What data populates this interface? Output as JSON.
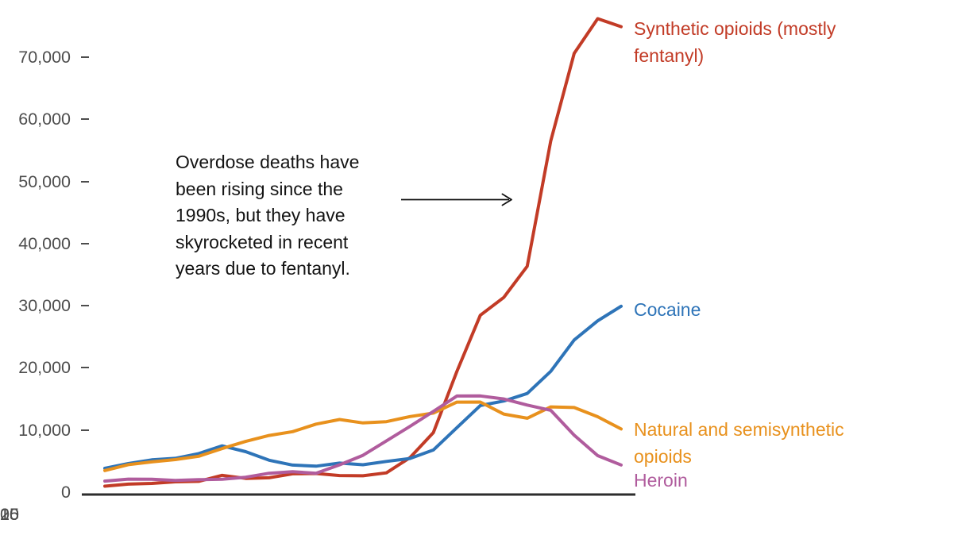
{
  "annotation": {
    "text": "Overdose deaths have been rising since the 1990s, but they have skyrocketed in recent years due to fentanyl.",
    "lines": [
      "Overdose deaths have",
      "been rising since the",
      "1990s, but they have",
      "skyrocketed in recent",
      "years due to fentanyl."
    ]
  },
  "legend": [
    {
      "label": "Synthetic opioids (mostly fentanyl)",
      "color": "#c23b26",
      "lines": [
        "Synthetic opioids (mostly",
        "fentanyl)"
      ]
    },
    {
      "label": "Cocaine",
      "color": "#2e74b8",
      "lines": [
        "Cocaine"
      ]
    },
    {
      "label": "Natural and semisynthetic opioids",
      "color": "#e8911d",
      "lines": [
        "Natural and semisynthetic",
        "opioids"
      ]
    },
    {
      "label": "Heroin",
      "color": "#b05c9d",
      "lines": [
        "Heroin"
      ]
    }
  ],
  "colors": {
    "axis_line": "#2d2d2d",
    "tick_text": "#4d4d4d",
    "annotation_text": "#141414",
    "arrow": "#111111"
  },
  "chart_data": {
    "type": "line",
    "title": "",
    "xlabel": "",
    "ylabel": "",
    "grid": false,
    "legend_position": "right-of-line-ends",
    "xlim": [
      2001,
      2023
    ],
    "ylim": [
      0,
      70000
    ],
    "xticks": [
      2005,
      2010,
      2015,
      2020
    ],
    "xtick_labels": [
      "2005",
      "2010",
      "2015",
      "2020"
    ],
    "yticks": [
      0,
      10000,
      20000,
      30000,
      40000,
      50000,
      60000,
      70000
    ],
    "ytick_labels": [
      "0",
      "10,000",
      "20,000",
      "30,000",
      "40,000",
      "50,000",
      "60,000",
      "70,000"
    ],
    "x": [
      2001,
      2002,
      2003,
      2004,
      2005,
      2006,
      2007,
      2008,
      2009,
      2010,
      2011,
      2012,
      2013,
      2014,
      2015,
      2016,
      2017,
      2018,
      2019,
      2020,
      2021,
      2022,
      2023
    ],
    "series": [
      {
        "name": "Synthetic opioids (mostly fentanyl)",
        "color": "#c23b26",
        "values": [
          957,
          1295,
          1400,
          1664,
          1742,
          2707,
          2213,
          2306,
          2946,
          3007,
          2666,
          2628,
          3105,
          5544,
          9580,
          19413,
          28466,
          31335,
          36359,
          56516,
          70601,
          76200,
          74900
        ]
      },
      {
        "name": "Cocaine",
        "color": "#2e74b8",
        "values": [
          3833,
          4599,
          5199,
          5443,
          6208,
          7448,
          6512,
          5129,
          4350,
          4183,
          4681,
          4404,
          4944,
          5415,
          6784,
          10375,
          13942,
          14666,
          15883,
          19447,
          24486,
          27569,
          29918
        ]
      },
      {
        "name": "Natural and semisynthetic opioids",
        "color": "#e8911d",
        "values": [
          3476,
          4416,
          4867,
          5231,
          5773,
          7017,
          8158,
          9119,
          9735,
          10943,
          11693,
          11140,
          11346,
          12159,
          12727,
          14487,
          14495,
          12552,
          11886,
          13722,
          13618,
          12135,
          10171
        ]
      },
      {
        "name": "Heroin",
        "color": "#b05c9d",
        "values": [
          1779,
          2089,
          2080,
          1878,
          2009,
          2088,
          2399,
          3041,
          3278,
          3036,
          4397,
          5925,
          8257,
          10574,
          12989,
          15469,
          15482,
          14996,
          14019,
          13165,
          9173,
          5871,
          4364
        ]
      }
    ]
  }
}
